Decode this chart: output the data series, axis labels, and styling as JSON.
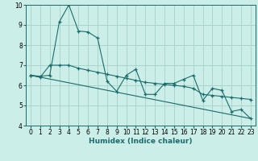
{
  "xlabel": "Humidex (Indice chaleur)",
  "bg_color": "#cceee8",
  "grid_color": "#aad4cc",
  "line_color": "#1a6b6b",
  "xlim": [
    -0.5,
    23.5
  ],
  "ylim": [
    4,
    10
  ],
  "yticks": [
    4,
    5,
    6,
    7,
    8,
    9,
    10
  ],
  "xticks": [
    0,
    1,
    2,
    3,
    4,
    5,
    6,
    7,
    8,
    9,
    10,
    11,
    12,
    13,
    14,
    15,
    16,
    17,
    18,
    19,
    20,
    21,
    22,
    23
  ],
  "series1_x": [
    0,
    1,
    2,
    3,
    4,
    5,
    6,
    7,
    8,
    9,
    10,
    11,
    12,
    13,
    14,
    15,
    16,
    17,
    18,
    19,
    20,
    21,
    22,
    23
  ],
  "series1_y": [
    6.5,
    6.45,
    6.5,
    9.15,
    10.0,
    8.7,
    8.65,
    8.35,
    6.2,
    5.7,
    6.5,
    6.8,
    5.55,
    5.55,
    6.1,
    6.1,
    6.3,
    6.5,
    5.25,
    5.85,
    5.75,
    4.7,
    4.8,
    4.35
  ],
  "series2_x": [
    0,
    1,
    2,
    3,
    4,
    5,
    6,
    7,
    8,
    9,
    10,
    11,
    12,
    13,
    14,
    15,
    16,
    17,
    18,
    19,
    20,
    21,
    22,
    23
  ],
  "series2_y": [
    6.5,
    6.4,
    7.0,
    7.0,
    7.0,
    6.85,
    6.75,
    6.65,
    6.55,
    6.45,
    6.35,
    6.25,
    6.15,
    6.1,
    6.05,
    6.0,
    5.95,
    5.85,
    5.55,
    5.5,
    5.45,
    5.4,
    5.35,
    5.3
  ],
  "series3_x": [
    0,
    23
  ],
  "series3_y": [
    6.5,
    4.35
  ],
  "xlabel_fontsize": 6.5,
  "tick_fontsize": 5.5
}
